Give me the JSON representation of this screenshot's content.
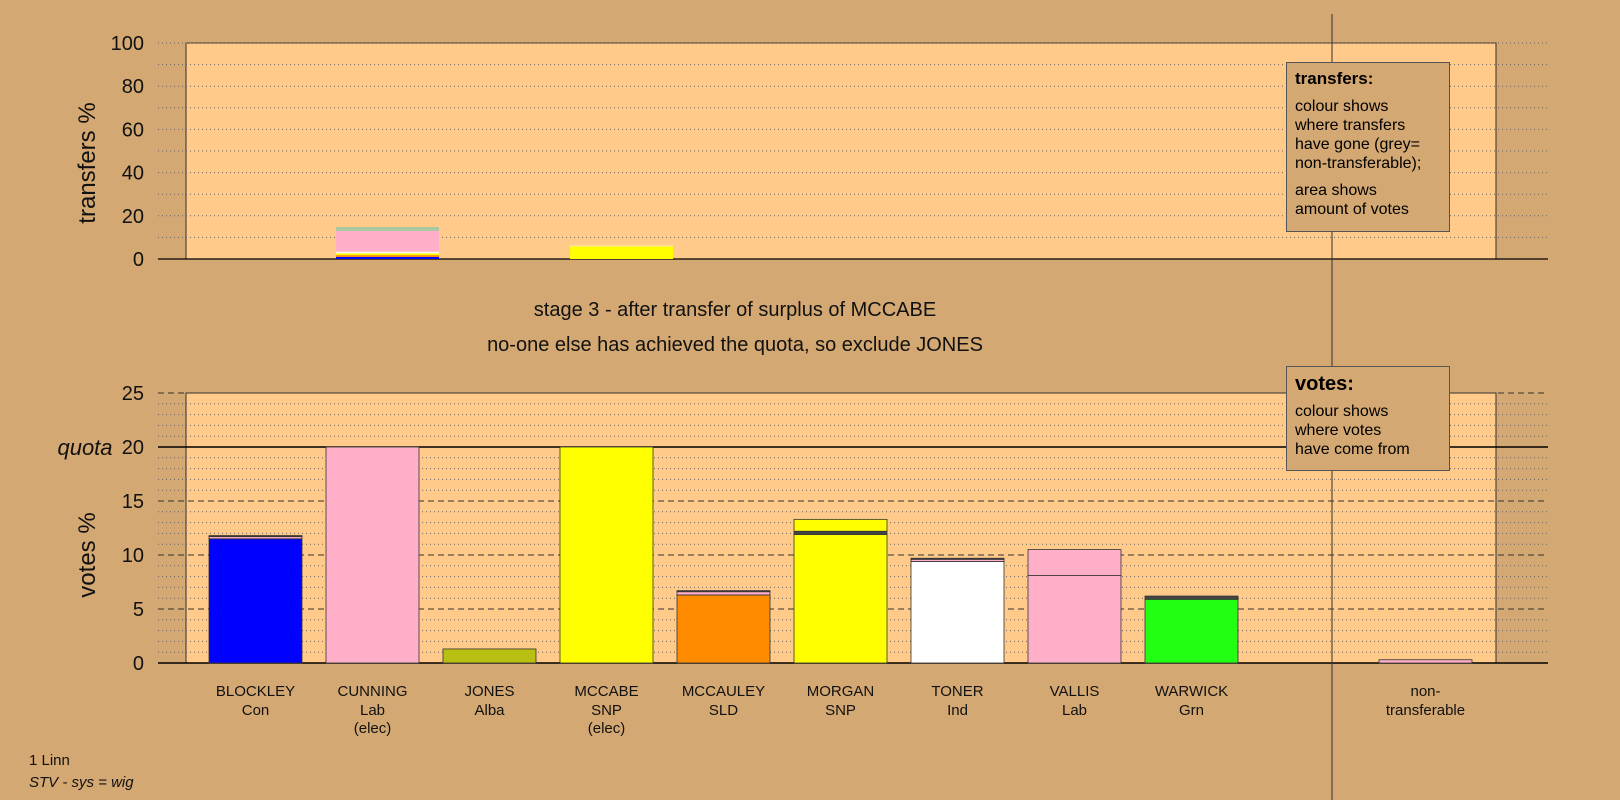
{
  "headings": {
    "line1": "stage 3 - after transfer of surplus of MCCABE",
    "line2": "no-one else has achieved the quota, so exclude JONES"
  },
  "legend_transfers": {
    "title": "transfers:",
    "lines1": [
      "colour shows",
      "where transfers",
      "have gone (grey=",
      "non-transferable);"
    ],
    "lines2": [
      "area shows",
      "amount of votes"
    ]
  },
  "legend_votes": {
    "title": "votes:",
    "lines": [
      "colour shows",
      "where votes",
      "have come from"
    ]
  },
  "footer": {
    "constituency": "1 Linn",
    "system": "STV - sys = wig"
  },
  "chart_data": [
    {
      "type": "bar",
      "name": "transfers",
      "ylabel": "transfers %",
      "ylim": [
        0,
        100
      ],
      "yticks": [
        0,
        20,
        40,
        60,
        80,
        100
      ],
      "grid": true,
      "columns": [
        {
          "candidate": "CUNNING",
          "slot": 1,
          "segments": [
            {
              "value": 1.0,
              "color": "#0000ff"
            },
            {
              "value": 0.8,
              "color": "#ff8c00"
            },
            {
              "value": 0.8,
              "color": "#ffff00"
            },
            {
              "value": 0.8,
              "color": "#f5f5f5"
            },
            {
              "value": 9.6,
              "color": "#ffafc8"
            },
            {
              "value": 1.8,
              "color": "#a8c8a0"
            }
          ]
        },
        {
          "candidate": "MCCABE",
          "slot": 3,
          "segments": [
            {
              "value": 5.8,
              "color": "#ffff00"
            },
            {
              "value": 0.5,
              "color": "#ffe8b0"
            }
          ]
        }
      ]
    },
    {
      "type": "bar",
      "name": "votes",
      "ylabel": "votes %",
      "ylim": [
        0,
        25
      ],
      "yticks": [
        0,
        5,
        10,
        15,
        20,
        25
      ],
      "quota": 20,
      "quota_label": "quota",
      "grid": true,
      "categories": [
        {
          "name": "BLOCKLEY",
          "party": "Con",
          "elected": "",
          "slot": 0,
          "segments": [
            {
              "value": 11.5,
              "color": "#0000ff"
            },
            {
              "value": 0.2,
              "color": "#ffafc8"
            },
            {
              "value": 0.1,
              "color": "#444444"
            }
          ]
        },
        {
          "name": "CUNNING",
          "party": "Lab",
          "elected": "(elec)",
          "slot": 1,
          "segments": [
            {
              "value": 20,
              "color": "#ffafc8"
            }
          ]
        },
        {
          "name": "JONES",
          "party": "Alba",
          "elected": "",
          "slot": 2,
          "segments": [
            {
              "value": 1.3,
              "color": "#b8c012"
            }
          ]
        },
        {
          "name": "MCCABE",
          "party": "SNP",
          "elected": "(elec)",
          "slot": 3,
          "segments": [
            {
              "value": 20,
              "color": "#ffff00"
            }
          ]
        },
        {
          "name": "MCCAULEY",
          "party": "SLD",
          "elected": "",
          "slot": 4,
          "segments": [
            {
              "value": 6.3,
              "color": "#ff8c00"
            },
            {
              "value": 0.3,
              "color": "#ffafc8"
            },
            {
              "value": 0.1,
              "color": "#444444"
            }
          ]
        },
        {
          "name": "MORGAN",
          "party": "SNP",
          "elected": "",
          "slot": 5,
          "segments": [
            {
              "value": 11.9,
              "color": "#ffff00"
            },
            {
              "value": 0.3,
              "color": "#444444"
            },
            {
              "value": 1.1,
              "color": "#ffff00"
            }
          ]
        },
        {
          "name": "TONER",
          "party": "Ind",
          "elected": "",
          "slot": 6,
          "segments": [
            {
              "value": 9.4,
              "color": "#ffffff"
            },
            {
              "value": 0.2,
              "color": "#ffafc8"
            },
            {
              "value": 0.1,
              "color": "#444444"
            }
          ]
        },
        {
          "name": "VALLIS",
          "party": "Lab",
          "elected": "",
          "slot": 7,
          "segments": [
            {
              "value": 8.1,
              "color": "#ffafc8"
            },
            {
              "value": 2.4,
              "color": "#ffafc8"
            }
          ]
        },
        {
          "name": "WARWICK",
          "party": "Grn",
          "elected": "",
          "slot": 8,
          "segments": [
            {
              "value": 5.9,
              "color": "#22ff12"
            },
            {
              "value": 0.3,
              "color": "#444444"
            }
          ]
        },
        {
          "name": "non-",
          "party": "transferable",
          "elected": "",
          "slot": 10,
          "segments": [
            {
              "value": 0.3,
              "color": "#ffafc8"
            }
          ]
        }
      ]
    }
  ],
  "colors": {
    "background": "#d4a872",
    "plot_area": "#ffca8a",
    "axis": "#000000"
  }
}
